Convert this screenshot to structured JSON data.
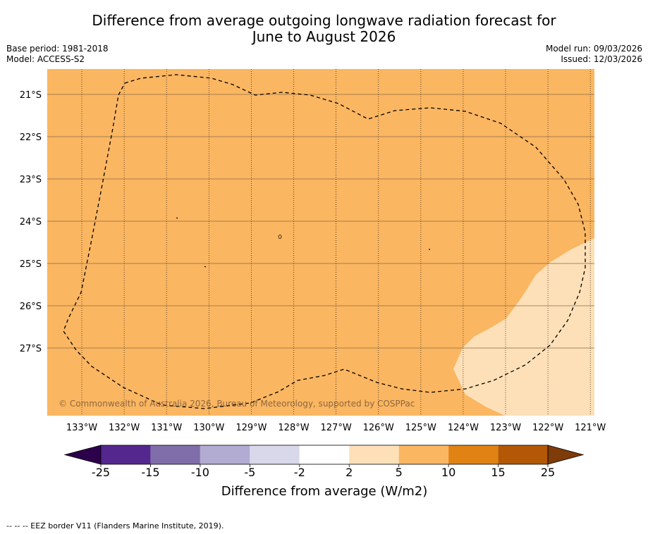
{
  "title_line1": "Difference from average outgoing longwave radiation forecast for",
  "title_line2": "June to August 2026",
  "base_period": "Base period: 1981-2018",
  "model": "Model: ACCESS-S2",
  "model_run": "Model run: 09/03/2026",
  "issued": "Issued: 12/03/2026",
  "map": {
    "lat_labels": [
      "21°S",
      "22°S",
      "23°S",
      "24°S",
      "25°S",
      "26°S",
      "27°S"
    ],
    "lon_labels": [
      "133°W",
      "132°W",
      "131°W",
      "130°W",
      "129°W",
      "128°W",
      "127°W",
      "126°W",
      "125°W",
      "124°W",
      "123°W",
      "122°W",
      "121°W"
    ],
    "background_category": "5 to 10",
    "background_color": "#fbb661",
    "secondary_category": "2 to 5",
    "secondary_color": "#fde0b8",
    "copyright": "© Commonwealth of Australia 2026, Bureau of Meteorology, supported by COSPPac"
  },
  "colorbar": {
    "bins": [
      {
        "from": -25,
        "to": -15,
        "color": "#54278f"
      },
      {
        "from": -15,
        "to": -10,
        "color": "#7f6ea9"
      },
      {
        "from": -10,
        "to": -5,
        "color": "#b2abd2"
      },
      {
        "from": -5,
        "to": -2,
        "color": "#d9d8ea"
      },
      {
        "from": -2,
        "to": 2,
        "color": "#ffffff"
      },
      {
        "from": 2,
        "to": 5,
        "color": "#fde0b8"
      },
      {
        "from": 5,
        "to": 10,
        "color": "#fbb661"
      },
      {
        "from": 10,
        "to": 15,
        "color": "#e08214"
      },
      {
        "from": 15,
        "to": 25,
        "color": "#b35806"
      }
    ],
    "low_extend_color": "#2d004b",
    "high_extend_color": "#7f3b08",
    "tick_labels": [
      "-25",
      "-15",
      "-10",
      "-5",
      "-2",
      "2",
      "5",
      "10",
      "15",
      "25"
    ],
    "label": "Difference from average (W/m2)"
  },
  "footer": "--  --  -- EEZ border V11 (Flanders Marine Institute, 2019)."
}
